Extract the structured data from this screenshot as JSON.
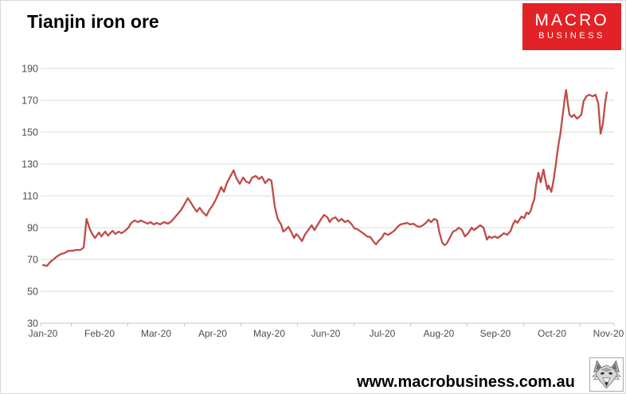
{
  "header": {
    "title": "Tianjin iron ore"
  },
  "logo": {
    "line1": "MACRO",
    "line2": "BUSINESS",
    "bg_color": "#e32227",
    "text_color": "#ffffff"
  },
  "footer": {
    "website": "www.macrobusiness.com.au",
    "icon": "wolf-head-icon"
  },
  "chart_data": {
    "type": "line",
    "title": "Tianjin iron ore",
    "xlabel": "",
    "ylabel": "",
    "legend": "none",
    "grid": "horizontal",
    "ylim": [
      30,
      190
    ],
    "y_ticks": [
      30,
      50,
      70,
      90,
      110,
      130,
      150,
      170,
      190
    ],
    "x_tick_labels": [
      "Jan-20",
      "Feb-20",
      "Mar-20",
      "Apr-20",
      "May-20",
      "Jun-20",
      "Jul-20",
      "Aug-20",
      "Sep-20",
      "Oct-20",
      "Nov-20"
    ],
    "x_unit": "months since Jan-20 tick (0 = Jan-20, 10 = Nov-20)",
    "grid_color": "#d6dcd2",
    "axis_color": "#c2c8c0",
    "label_color": "#4d4d4d",
    "series": [
      {
        "name": "Tianjin iron ore",
        "color": "#bf4b47",
        "points": [
          [
            0,
            66.5
          ],
          [
            0.07,
            66
          ],
          [
            0.13,
            68.5
          ],
          [
            0.2,
            70.5
          ],
          [
            0.25,
            72
          ],
          [
            0.32,
            73.5
          ],
          [
            0.38,
            74
          ],
          [
            0.45,
            75.5
          ],
          [
            0.52,
            75.5
          ],
          [
            0.59,
            76
          ],
          [
            0.66,
            76
          ],
          [
            0.72,
            77.5
          ],
          [
            0.77,
            95.5
          ],
          [
            0.83,
            89
          ],
          [
            0.87,
            86
          ],
          [
            0.92,
            83.5
          ],
          [
            0.99,
            87
          ],
          [
            1.03,
            84.5
          ],
          [
            1.1,
            87.5
          ],
          [
            1.15,
            85
          ],
          [
            1.23,
            88
          ],
          [
            1.28,
            86
          ],
          [
            1.34,
            87.5
          ],
          [
            1.39,
            86.5
          ],
          [
            1.45,
            88
          ],
          [
            1.51,
            90
          ],
          [
            1.56,
            93
          ],
          [
            1.62,
            94.5
          ],
          [
            1.68,
            93.5
          ],
          [
            1.73,
            94.5
          ],
          [
            1.79,
            93.5
          ],
          [
            1.85,
            92.5
          ],
          [
            1.9,
            93.5
          ],
          [
            1.96,
            92
          ],
          [
            2.01,
            93
          ],
          [
            2.07,
            92
          ],
          [
            2.14,
            93.5
          ],
          [
            2.21,
            92.5
          ],
          [
            2.27,
            94
          ],
          [
            2.32,
            96
          ],
          [
            2.38,
            98.5
          ],
          [
            2.44,
            101
          ],
          [
            2.49,
            104
          ],
          [
            2.56,
            108.5
          ],
          [
            2.61,
            106
          ],
          [
            2.66,
            103
          ],
          [
            2.72,
            100
          ],
          [
            2.77,
            102.5
          ],
          [
            2.83,
            99.5
          ],
          [
            2.89,
            97.5
          ],
          [
            2.94,
            101
          ],
          [
            3,
            104
          ],
          [
            3.06,
            108
          ],
          [
            3.11,
            112
          ],
          [
            3.15,
            115.5
          ],
          [
            3.2,
            112.5
          ],
          [
            3.25,
            118
          ],
          [
            3.31,
            122
          ],
          [
            3.37,
            126
          ],
          [
            3.42,
            121
          ],
          [
            3.48,
            117.5
          ],
          [
            3.54,
            121.5
          ],
          [
            3.59,
            119
          ],
          [
            3.65,
            118
          ],
          [
            3.7,
            121.5
          ],
          [
            3.76,
            122.5
          ],
          [
            3.82,
            120.5
          ],
          [
            3.87,
            122
          ],
          [
            3.93,
            118
          ],
          [
            3.99,
            120.5
          ],
          [
            4.04,
            119.5
          ],
          [
            4.1,
            103
          ],
          [
            4.15,
            95.5
          ],
          [
            4.21,
            92
          ],
          [
            4.25,
            87.5
          ],
          [
            4.3,
            89
          ],
          [
            4.34,
            90.5
          ],
          [
            4.38,
            88
          ],
          [
            4.44,
            83.5
          ],
          [
            4.48,
            86
          ],
          [
            4.52,
            84.5
          ],
          [
            4.58,
            81.5
          ],
          [
            4.63,
            85.5
          ],
          [
            4.69,
            88.5
          ],
          [
            4.75,
            91.5
          ],
          [
            4.8,
            88.5
          ],
          [
            4.86,
            92
          ],
          [
            4.92,
            95.5
          ],
          [
            4.97,
            98
          ],
          [
            5.03,
            96.5
          ],
          [
            5.07,
            93.5
          ],
          [
            5.11,
            95.5
          ],
          [
            5.17,
            96.5
          ],
          [
            5.23,
            94
          ],
          [
            5.28,
            95.5
          ],
          [
            5.34,
            93.5
          ],
          [
            5.39,
            94.5
          ],
          [
            5.45,
            92.5
          ],
          [
            5.51,
            89.5
          ],
          [
            5.56,
            89
          ],
          [
            5.62,
            87.5
          ],
          [
            5.68,
            86
          ],
          [
            5.73,
            84.5
          ],
          [
            5.79,
            84
          ],
          [
            5.85,
            81
          ],
          [
            5.89,
            79.5
          ],
          [
            5.93,
            81.5
          ],
          [
            5.99,
            83.5
          ],
          [
            6.04,
            86.5
          ],
          [
            6.1,
            85.5
          ],
          [
            6.15,
            86.5
          ],
          [
            6.21,
            88
          ],
          [
            6.27,
            90.5
          ],
          [
            6.32,
            92
          ],
          [
            6.38,
            92.5
          ],
          [
            6.44,
            93
          ],
          [
            6.49,
            92
          ],
          [
            6.55,
            92.5
          ],
          [
            6.61,
            91
          ],
          [
            6.66,
            90.5
          ],
          [
            6.72,
            91.5
          ],
          [
            6.77,
            93
          ],
          [
            6.82,
            95
          ],
          [
            6.86,
            93.5
          ],
          [
            6.92,
            95.5
          ],
          [
            6.97,
            94.5
          ],
          [
            7.01,
            87
          ],
          [
            7.06,
            80.5
          ],
          [
            7.1,
            79
          ],
          [
            7.14,
            80
          ],
          [
            7.2,
            84
          ],
          [
            7.25,
            87.5
          ],
          [
            7.31,
            88.5
          ],
          [
            7.35,
            90
          ],
          [
            7.41,
            88.5
          ],
          [
            7.46,
            84.5
          ],
          [
            7.52,
            86.5
          ],
          [
            7.58,
            90
          ],
          [
            7.62,
            88.5
          ],
          [
            7.68,
            90
          ],
          [
            7.73,
            91.5
          ],
          [
            7.79,
            90
          ],
          [
            7.85,
            82.5
          ],
          [
            7.89,
            84.5
          ],
          [
            7.93,
            83.5
          ],
          [
            7.99,
            84.5
          ],
          [
            8.04,
            83.5
          ],
          [
            8.1,
            85
          ],
          [
            8.15,
            86.5
          ],
          [
            8.21,
            85.5
          ],
          [
            8.27,
            88
          ],
          [
            8.31,
            92
          ],
          [
            8.35,
            94.5
          ],
          [
            8.39,
            93
          ],
          [
            8.46,
            97
          ],
          [
            8.51,
            96
          ],
          [
            8.55,
            99.5
          ],
          [
            8.59,
            98.5
          ],
          [
            8.63,
            101
          ],
          [
            8.65,
            104
          ],
          [
            8.69,
            108
          ],
          [
            8.72,
            117
          ],
          [
            8.76,
            124.5
          ],
          [
            8.8,
            118.5
          ],
          [
            8.85,
            126.5
          ],
          [
            8.89,
            119
          ],
          [
            8.92,
            114
          ],
          [
            8.94,
            116.5
          ],
          [
            8.99,
            112.5
          ],
          [
            9.03,
            120
          ],
          [
            9.07,
            130
          ],
          [
            9.11,
            141
          ],
          [
            9.15,
            149
          ],
          [
            9.18,
            158
          ],
          [
            9.21,
            166
          ],
          [
            9.23,
            172
          ],
          [
            9.25,
            176.5
          ],
          [
            9.28,
            168
          ],
          [
            9.31,
            161
          ],
          [
            9.35,
            159.5
          ],
          [
            9.39,
            161
          ],
          [
            9.44,
            158.5
          ],
          [
            9.48,
            159.5
          ],
          [
            9.52,
            161
          ],
          [
            9.56,
            169.5
          ],
          [
            9.61,
            172.5
          ],
          [
            9.66,
            173.5
          ],
          [
            9.72,
            172.5
          ],
          [
            9.77,
            173.5
          ],
          [
            9.82,
            168
          ],
          [
            9.86,
            149
          ],
          [
            9.9,
            155
          ],
          [
            9.94,
            168
          ],
          [
            9.97,
            175
          ]
        ]
      }
    ]
  }
}
